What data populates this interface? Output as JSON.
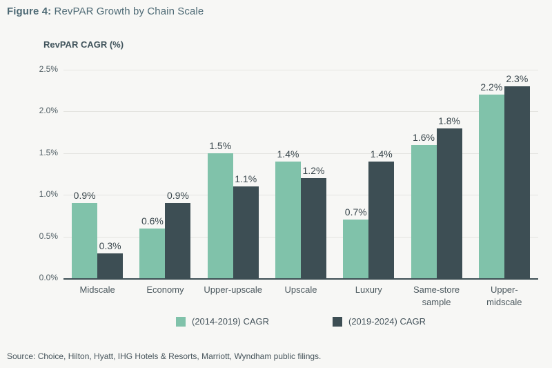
{
  "figure": {
    "title_prefix": "Figure 4:",
    "title_rest": " RevPAR Growth by Chain Scale",
    "source": "Source: Choice, Hilton, Hyatt, IHG Hotels & Resorts, Marriott, Wyndham public filings."
  },
  "chart_data": {
    "type": "bar",
    "title": "Figure 4: RevPAR Growth by Chain Scale",
    "ylabel": "RevPAR CAGR (%)",
    "xlabel": "",
    "categories": [
      "Midscale",
      "Economy",
      "Upper-upscale",
      "Upscale",
      "Luxury",
      "Same-store sample",
      "Upper-midscale"
    ],
    "series": [
      {
        "name": "(2014-2019) CAGR",
        "color": "#80c2aa",
        "values": [
          0.9,
          0.6,
          1.5,
          1.4,
          0.7,
          1.6,
          2.2
        ]
      },
      {
        "name": "(2019-2024) CAGR",
        "color": "#3d4e54",
        "values": [
          0.3,
          0.9,
          1.1,
          1.2,
          1.4,
          1.8,
          2.3
        ]
      }
    ],
    "value_labels": [
      [
        "0.9%",
        "0.6%",
        "1.5%",
        "1.4%",
        "0.7%",
        "1.6%",
        "2.2%"
      ],
      [
        "0.3%",
        "0.9%",
        "1.1%",
        "1.2%",
        "1.4%",
        "1.8%",
        "2.3%"
      ]
    ],
    "ylim": [
      0,
      2.5
    ],
    "y_ticks": [
      "0.0%",
      "0.5%",
      "1.0%",
      "1.5%",
      "2.0%",
      "2.5%"
    ],
    "grid": true,
    "legend_position": "bottom"
  },
  "colors": {
    "background": "#f7f7f5",
    "gridline": "#e4e4e0",
    "axis_line": "#3d4e54",
    "series1": "#80c2aa",
    "series2": "#3d4e54",
    "title_text": "#4e6a75",
    "label_text": "#39464c"
  }
}
